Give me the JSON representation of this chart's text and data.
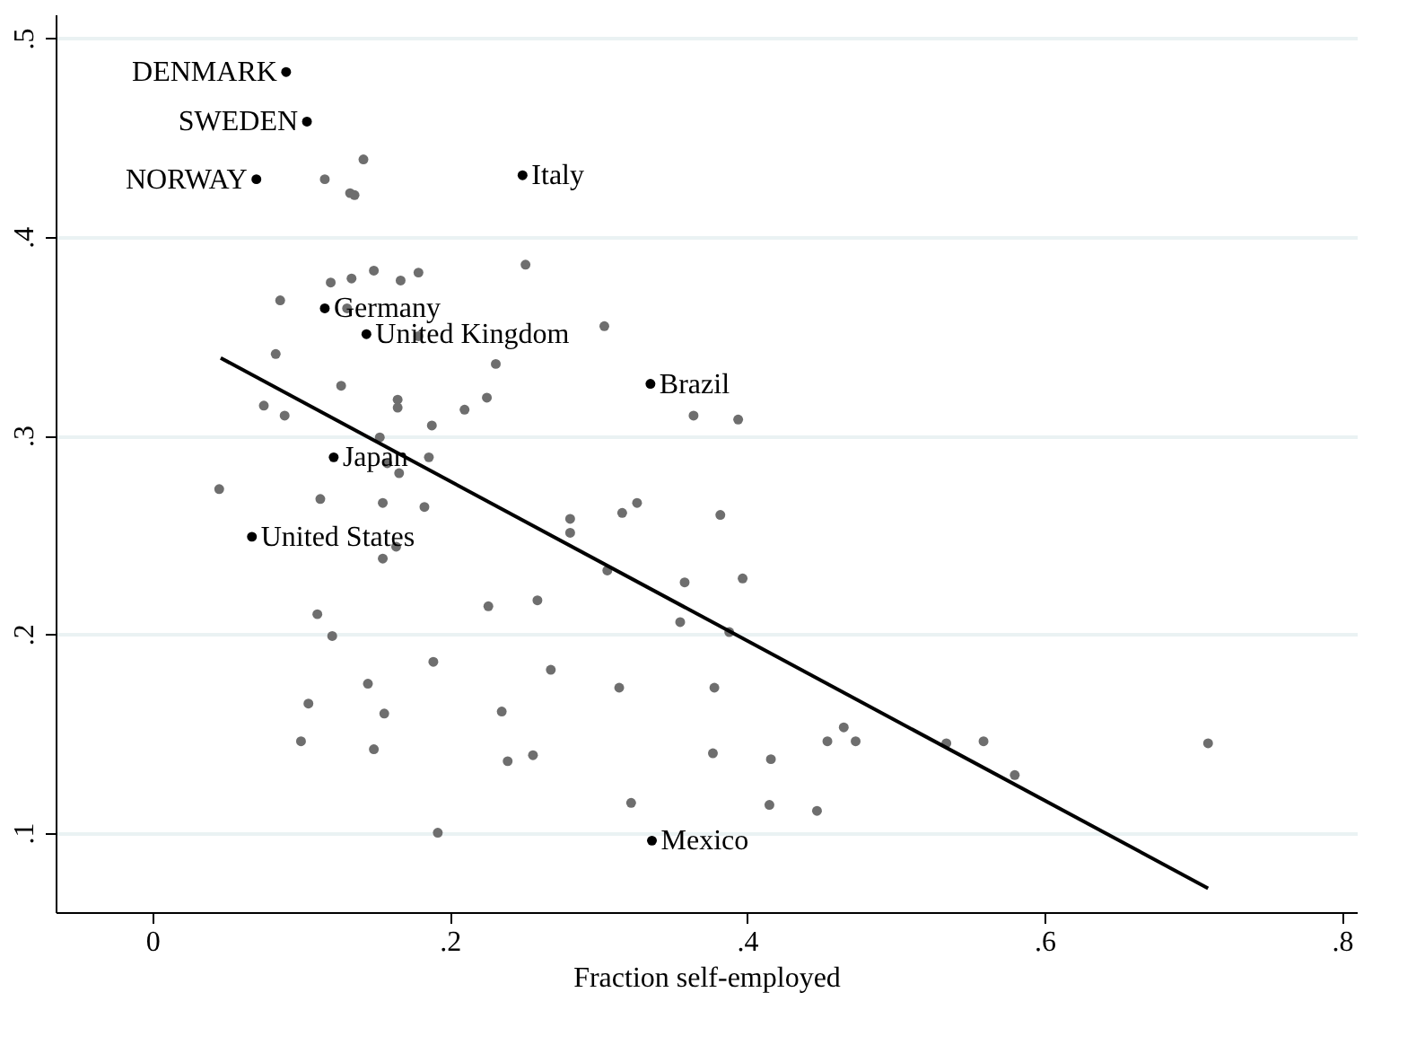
{
  "chart_data": {
    "type": "scatter",
    "xlabel": "Fraction self-employed",
    "xlim": [
      -0.065,
      0.81
    ],
    "ylim": [
      0.06,
      0.512
    ],
    "xticks": [
      0,
      {
        "value": 0.2,
        "label": ".2"
      },
      {
        "value": 0.4,
        "label": ".4"
      },
      {
        "value": 0.6,
        "label": ".6"
      },
      {
        "value": 0.8,
        "label": ".8"
      }
    ],
    "yticks": [
      {
        "value": 0.1,
        "label": ".1"
      },
      {
        "value": 0.2,
        "label": ".2"
      },
      {
        "value": 0.3,
        "label": ".3"
      },
      {
        "value": 0.4,
        "label": ".4"
      },
      {
        "value": 0.5,
        "label": ".5"
      }
    ],
    "grid": "y",
    "series": [
      {
        "color": "#6e6e6e",
        "marker": "circle",
        "x": [
          0.142,
          0.116,
          0.133,
          0.136,
          0.251,
          0.12,
          0.134,
          0.149,
          0.167,
          0.179,
          0.086,
          0.131,
          0.179,
          0.304,
          0.083,
          0.231,
          0.127,
          0.225,
          0.165,
          0.165,
          0.21,
          0.075,
          0.089,
          0.188,
          0.153,
          0.364,
          0.394,
          0.186,
          0.158,
          0.166,
          0.045,
          0.113,
          0.155,
          0.183,
          0.281,
          0.281,
          0.316,
          0.326,
          0.164,
          0.155,
          0.306,
          0.358,
          0.355,
          0.226,
          0.259,
          0.111,
          0.121,
          0.189,
          0.268,
          0.145,
          0.314,
          0.105,
          0.156,
          0.235,
          0.1,
          0.149,
          0.256,
          0.239,
          0.322,
          0.192,
          0.382,
          0.397,
          0.388,
          0.378,
          0.377,
          0.416,
          0.415,
          0.447,
          0.454,
          0.465,
          0.473,
          0.534,
          0.559,
          0.58,
          0.71
        ],
        "values": [
          0.439,
          0.429,
          0.422,
          0.421,
          0.386,
          0.377,
          0.379,
          0.383,
          0.378,
          0.382,
          0.368,
          0.364,
          0.35,
          0.355,
          0.341,
          0.336,
          0.325,
          0.319,
          0.318,
          0.314,
          0.313,
          0.315,
          0.31,
          0.305,
          0.299,
          0.31,
          0.308,
          0.289,
          0.286,
          0.281,
          0.273,
          0.268,
          0.266,
          0.264,
          0.258,
          0.251,
          0.261,
          0.266,
          0.244,
          0.238,
          0.232,
          0.226,
          0.206,
          0.214,
          0.217,
          0.21,
          0.199,
          0.186,
          0.182,
          0.175,
          0.173,
          0.165,
          0.16,
          0.161,
          0.146,
          0.142,
          0.139,
          0.136,
          0.115,
          0.1,
          0.26,
          0.228,
          0.201,
          0.173,
          0.14,
          0.137,
          0.114,
          0.111,
          0.146,
          0.153,
          0.146,
          0.145,
          0.146,
          0.129,
          0.145
        ]
      },
      {
        "color": "#000000",
        "marker": "circle",
        "x": [
          0.09,
          0.104,
          0.07,
          0.249,
          0.116,
          0.144,
          0.335,
          0.122,
          0.067,
          0.336
        ],
        "values": [
          0.483,
          0.458,
          0.429,
          0.431,
          0.364,
          0.351,
          0.326,
          0.289,
          0.249,
          0.096
        ]
      },
      {
        "type": "line",
        "color": "#000000",
        "line_style": "solid",
        "x": [
          0.046,
          0.71
        ],
        "values": [
          0.339,
          0.072
        ]
      }
    ],
    "annotations": [
      {
        "text": "DENMARK",
        "x": 0.09,
        "y": 0.483
      },
      {
        "text": "SWEDEN",
        "x": 0.104,
        "y": 0.458
      },
      {
        "text": "NORWAY",
        "x": 0.07,
        "y": 0.429
      },
      {
        "text": "Italy",
        "x": 0.249,
        "y": 0.431
      },
      {
        "text": "Germany",
        "x": 0.116,
        "y": 0.364
      },
      {
        "text": "United Kingdom",
        "x": 0.144,
        "y": 0.351
      },
      {
        "text": "Brazil",
        "x": 0.335,
        "y": 0.326
      },
      {
        "text": "Japan",
        "x": 0.122,
        "y": 0.289
      },
      {
        "text": "United States",
        "x": 0.067,
        "y": 0.249
      },
      {
        "text": "Mexico",
        "x": 0.336,
        "y": 0.096
      }
    ]
  }
}
